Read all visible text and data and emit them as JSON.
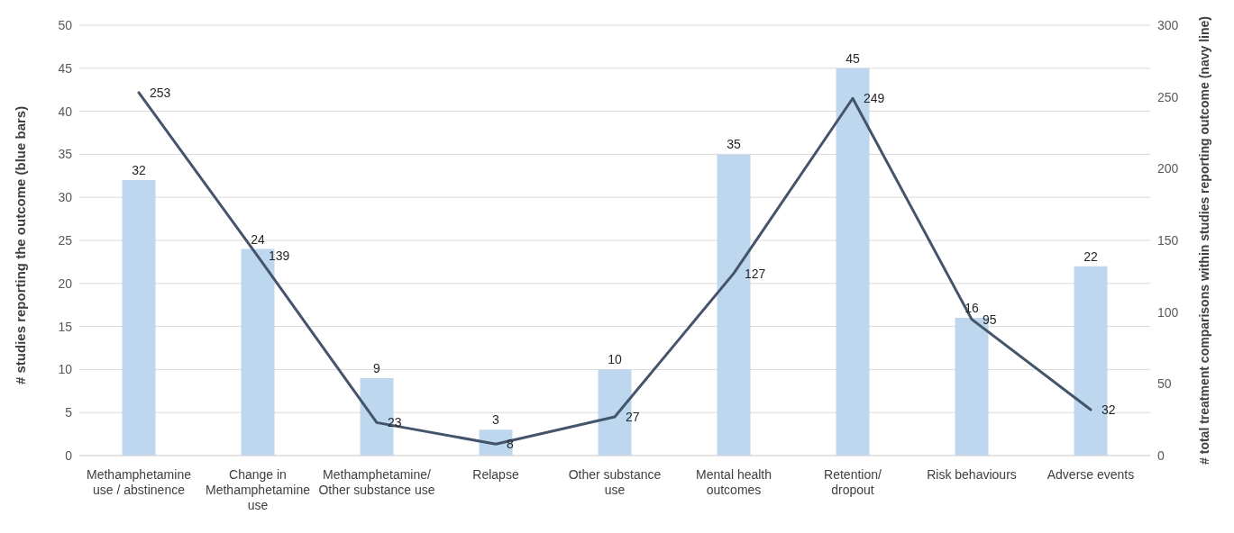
{
  "chart_data": {
    "type": "bar",
    "ylabel": "# studies reporting the outcome (blue bars)",
    "y2label": "# total treatment comparisons within studies reporting outcome (navy line)",
    "categories": [
      "Methamphetamine\nuse / abstinence",
      "Change in\nMethamphetamine\nuse",
      "Methamphetamine/\nOther substance use",
      "Relapse",
      "Other substance\nuse",
      "Mental health\noutcomes",
      "Retention/\ndropout",
      "Risk behaviours",
      "Adverse events"
    ],
    "series": [
      {
        "color": "#bdd7ee",
        "values": [
          32,
          24,
          9,
          3,
          10,
          35,
          45,
          16,
          22
        ]
      },
      {
        "type": "line",
        "axis": "y2",
        "color": "#44546a",
        "values": [
          253,
          139,
          23,
          8,
          27,
          127,
          249,
          95,
          32
        ]
      }
    ],
    "ylim": [
      0,
      50
    ],
    "yticks": [
      0,
      5,
      10,
      15,
      20,
      25,
      30,
      35,
      40,
      45,
      50
    ],
    "y2lim": [
      0,
      300
    ],
    "y2ticks": [
      0,
      50,
      100,
      150,
      200,
      250,
      300
    ],
    "grid": "y",
    "legend": false,
    "marker": "none",
    "line_style": "solid",
    "data_labels": true
  }
}
